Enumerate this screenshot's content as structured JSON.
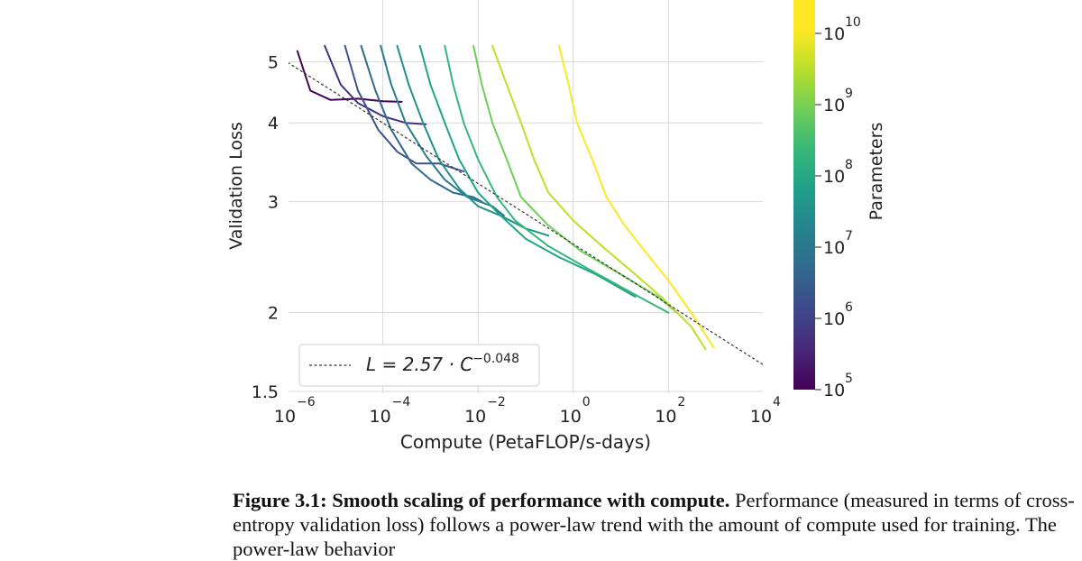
{
  "chart_data": {
    "type": "line",
    "xscale": "log",
    "yscale": "log",
    "xlabel": "Compute (PetaFLOP/s-days)",
    "ylabel": "Validation Loss",
    "colorbar_label": "Parameters",
    "x_ticks": [
      {
        "base": "10",
        "exp": "−6",
        "value": 1e-06
      },
      {
        "base": "10",
        "exp": "−4",
        "value": 0.0001
      },
      {
        "base": "10",
        "exp": "−2",
        "value": 0.01
      },
      {
        "base": "10",
        "exp": "0",
        "value": 1
      },
      {
        "base": "10",
        "exp": "2",
        "value": 100
      },
      {
        "base": "10",
        "exp": "4",
        "value": 10000
      }
    ],
    "y_ticks": [
      {
        "label": "1.5",
        "value": 1.5
      },
      {
        "label": "2",
        "value": 2
      },
      {
        "label": "3",
        "value": 3
      },
      {
        "label": "4",
        "value": 4
      },
      {
        "label": "5",
        "value": 5
      }
    ],
    "colorbar_ticks": [
      {
        "base": "10",
        "exp": "5",
        "value": 100000
      },
      {
        "base": "10",
        "exp": "6",
        "value": 1000000
      },
      {
        "base": "10",
        "exp": "7",
        "value": 10000000
      },
      {
        "base": "10",
        "exp": "8",
        "value": 100000000
      },
      {
        "base": "10",
        "exp": "9",
        "value": 1000000000
      },
      {
        "base": "10",
        "exp": "10",
        "value": 10000000000
      }
    ],
    "legend": {
      "label": "L = 2.57 · C",
      "exponent": "−0.048",
      "location": "lower-left"
    },
    "fit": {
      "a": 2.57,
      "b": -0.048
    },
    "series": [
      {
        "name": "1e5",
        "color": "#440154",
        "points": [
          [
            1.6e-06,
            5.2
          ],
          [
            3e-06,
            4.5
          ],
          [
            8e-06,
            4.35
          ],
          [
            3e-05,
            4.37
          ],
          [
            0.0001,
            4.33
          ],
          [
            0.00025,
            4.32
          ]
        ]
      },
      {
        "name": "3e5",
        "color": "#46317e",
        "points": [
          [
            6e-06,
            5.3
          ],
          [
            1.3e-05,
            4.6
          ],
          [
            3e-05,
            4.3
          ],
          [
            0.0001,
            4.1
          ],
          [
            0.0003,
            4.0
          ],
          [
            0.0008,
            3.98
          ]
        ]
      },
      {
        "name": "1e6",
        "color": "#3b528b",
        "points": [
          [
            1.6e-05,
            5.3
          ],
          [
            3e-05,
            4.5
          ],
          [
            8e-05,
            3.9
          ],
          [
            0.0002,
            3.6
          ],
          [
            0.0005,
            3.45
          ],
          [
            0.0015,
            3.45
          ],
          [
            0.005,
            3.35
          ]
        ]
      },
      {
        "name": "3e6",
        "color": "#31688e",
        "points": [
          [
            3.5e-05,
            5.3
          ],
          [
            7e-05,
            4.5
          ],
          [
            0.00015,
            3.9
          ],
          [
            0.0004,
            3.45
          ],
          [
            0.001,
            3.25
          ],
          [
            0.003,
            3.1
          ],
          [
            0.008,
            3.05
          ],
          [
            0.012,
            3.0
          ]
        ]
      },
      {
        "name": "1e7",
        "color": "#287c8e",
        "points": [
          [
            9e-05,
            5.3
          ],
          [
            0.00015,
            4.6
          ],
          [
            0.0003,
            4.0
          ],
          [
            0.0008,
            3.55
          ],
          [
            0.002,
            3.25
          ],
          [
            0.006,
            3.05
          ],
          [
            0.02,
            2.95
          ],
          [
            0.035,
            2.85
          ]
        ]
      },
      {
        "name": "3e7",
        "color": "#21918c",
        "points": [
          [
            0.0002,
            5.3
          ],
          [
            0.00035,
            4.6
          ],
          [
            0.0007,
            4.0
          ],
          [
            0.0015,
            3.5
          ],
          [
            0.004,
            3.15
          ],
          [
            0.01,
            2.95
          ],
          [
            0.03,
            2.85
          ],
          [
            0.1,
            2.72
          ],
          [
            0.3,
            2.65
          ]
        ]
      },
      {
        "name": "1e8",
        "color": "#20a486",
        "points": [
          [
            0.0006,
            5.3
          ],
          [
            0.001,
            4.6
          ],
          [
            0.002,
            4.0
          ],
          [
            0.004,
            3.5
          ],
          [
            0.01,
            3.1
          ],
          [
            0.03,
            2.85
          ],
          [
            0.1,
            2.62
          ],
          [
            0.5,
            2.45
          ],
          [
            3,
            2.3
          ],
          [
            20,
            2.12
          ]
        ]
      },
      {
        "name": "3e8",
        "color": "#35b779",
        "points": [
          [
            0.002,
            5.3
          ],
          [
            0.003,
            4.6
          ],
          [
            0.005,
            4.0
          ],
          [
            0.01,
            3.5
          ],
          [
            0.025,
            3.05
          ],
          [
            0.06,
            2.8
          ],
          [
            0.3,
            2.55
          ],
          [
            2,
            2.35
          ],
          [
            30,
            2.1
          ],
          [
            100,
            2.0
          ]
        ]
      },
      {
        "name": "1e9",
        "color": "#6ece58",
        "points": [
          [
            0.008,
            5.3
          ],
          [
            0.012,
            4.6
          ],
          [
            0.02,
            4.0
          ],
          [
            0.04,
            3.5
          ],
          [
            0.08,
            3.05
          ],
          [
            0.3,
            2.75
          ],
          [
            1.5,
            2.5
          ],
          [
            10,
            2.3
          ],
          [
            60,
            2.12
          ],
          [
            150,
            2.0
          ]
        ]
      },
      {
        "name": "1e10",
        "color": "#bddf26",
        "points": [
          [
            0.02,
            5.3
          ],
          [
            0.04,
            4.6
          ],
          [
            0.08,
            4.0
          ],
          [
            0.15,
            3.5
          ],
          [
            0.3,
            3.1
          ],
          [
            1,
            2.8
          ],
          [
            4,
            2.55
          ],
          [
            20,
            2.3
          ],
          [
            80,
            2.1
          ],
          [
            300,
            1.9
          ],
          [
            600,
            1.75
          ]
        ]
      },
      {
        "name": "1e11",
        "color": "#fde725",
        "points": [
          [
            0.5,
            5.3
          ],
          [
            0.8,
            4.6
          ],
          [
            1.2,
            4.0
          ],
          [
            2.5,
            3.5
          ],
          [
            5,
            3.05
          ],
          [
            12,
            2.75
          ],
          [
            40,
            2.45
          ],
          [
            100,
            2.25
          ],
          [
            300,
            2.0
          ],
          [
            900,
            1.76
          ]
        ]
      }
    ]
  },
  "caption": {
    "label": "Figure 3.1:",
    "title": "Smooth scaling of performance with compute.",
    "text": "Performance (measured in terms of cross-entropy validation loss) follows a power-law trend with the amount of compute used for training. The power-law behavior"
  }
}
